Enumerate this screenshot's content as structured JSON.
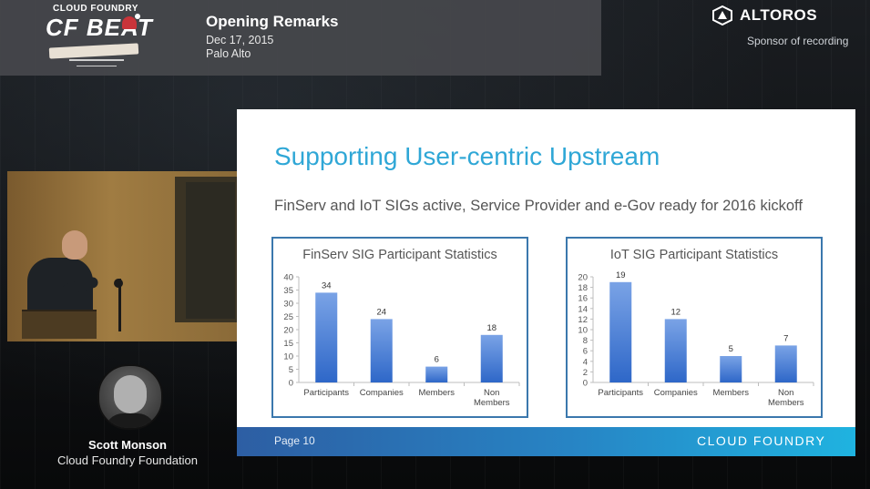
{
  "event": {
    "logo_top": "CLOUD FOUNDRY",
    "logo_main": "CF BEAT",
    "title": "Opening Remarks",
    "date": "Dec 17, 2015",
    "location": "Palo Alto"
  },
  "sponsor": {
    "name": "ALTOROS",
    "label": "Sponsor of recording"
  },
  "speaker": {
    "name": "Scott Monson",
    "organization": "Cloud Foundry Foundation"
  },
  "slide": {
    "title": "Supporting User-centric Upstream",
    "subtitle": "FinServ and IoT SIGs active, Service Provider and e-Gov ready for 2016 kickoff",
    "page": "Page 10",
    "brand": "CLOUD FOUNDRY"
  },
  "colors": {
    "accent_blue": "#2fa7d6",
    "bar_top": "#7aa3e6",
    "bar_bottom": "#2e67c8",
    "chart_border": "#3b78ad"
  },
  "chart_data": [
    {
      "type": "bar",
      "title": "FinServ SIG Participant Statistics",
      "categories": [
        "Participants",
        "Companies",
        "Members",
        "Non Members"
      ],
      "values": [
        34,
        24,
        6,
        18
      ],
      "ylim": [
        0,
        40
      ],
      "yticks": [
        0,
        5,
        10,
        15,
        20,
        25,
        30,
        35,
        40
      ],
      "xlabel": "",
      "ylabel": "",
      "grid": false
    },
    {
      "type": "bar",
      "title": "IoT SIG Participant Statistics",
      "categories": [
        "Participants",
        "Companies",
        "Members",
        "Non Members"
      ],
      "values": [
        19,
        12,
        5,
        7
      ],
      "ylim": [
        0,
        20
      ],
      "yticks": [
        0,
        2,
        4,
        6,
        8,
        10,
        12,
        14,
        16,
        18,
        20
      ],
      "xlabel": "",
      "ylabel": "",
      "grid": false
    }
  ]
}
